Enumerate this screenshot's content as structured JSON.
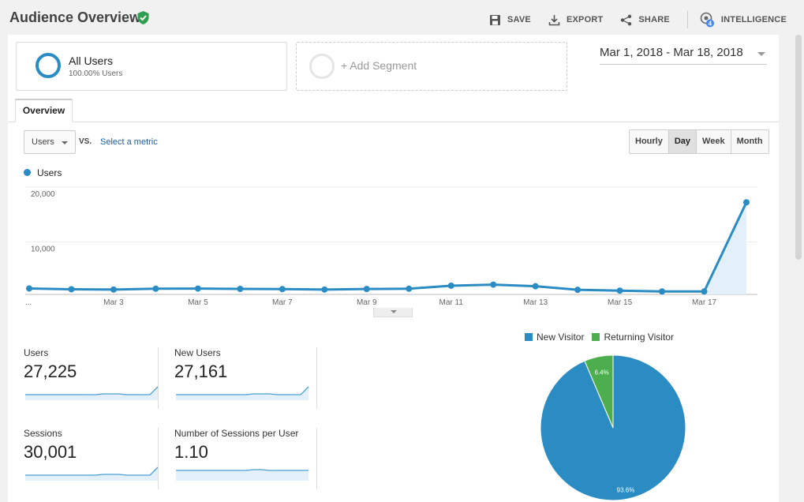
{
  "header": {
    "title": "Audience Overview",
    "actions": {
      "save": "SAVE",
      "export": "EXPORT",
      "share": "SHARE",
      "intelligence": "INTELLIGENCE",
      "intelligence_badge": "4"
    }
  },
  "segments": {
    "active": {
      "name": "All Users",
      "sub": "100.00% Users"
    },
    "add_label": "+ Add Segment"
  },
  "date_range": "Mar 1, 2018 - Mar 18, 2018",
  "tabs": {
    "overview": "Overview"
  },
  "controls": {
    "metric": "Users",
    "vs": "VS.",
    "select_metric": "Select a metric",
    "granularity": [
      "Hourly",
      "Day",
      "Week",
      "Month"
    ],
    "granularity_active": "Day"
  },
  "colors": {
    "primary": "#2b8cc4",
    "secondary": "#4cae4c",
    "verified": "#2e9e4f"
  },
  "chart_data": [
    {
      "type": "line",
      "series": [
        {
          "name": "Users",
          "values": [
            800,
            650,
            600,
            750,
            780,
            720,
            680,
            600,
            700,
            750,
            1300,
            1500,
            1200,
            550,
            400,
            250,
            250,
            16500
          ]
        }
      ],
      "x": [
        "Mar 1",
        "Mar 2",
        "Mar 3",
        "Mar 4",
        "Mar 5",
        "Mar 6",
        "Mar 7",
        "Mar 8",
        "Mar 9",
        "Mar 10",
        "Mar 11",
        "Mar 12",
        "Mar 13",
        "Mar 14",
        "Mar 15",
        "Mar 16",
        "Mar 17",
        "Mar 18"
      ],
      "x_tick_labels": [
        "...",
        "Mar 3",
        "Mar 5",
        "Mar 7",
        "Mar 9",
        "Mar 11",
        "Mar 13",
        "Mar 15",
        "Mar 17"
      ],
      "y_tick_labels": [
        "20,000",
        "10,000"
      ],
      "ylim": [
        0,
        20000
      ],
      "grid": true
    },
    {
      "type": "pie",
      "categories": [
        "New Visitor",
        "Returning Visitor"
      ],
      "values": [
        93.6,
        6.4
      ],
      "labels": [
        "93.6%",
        "6.4%"
      ]
    }
  ],
  "stats": [
    {
      "label": "Users",
      "value": "27,225",
      "spark": [
        6,
        6,
        6,
        6,
        6,
        6,
        6,
        6,
        6,
        6,
        7,
        7,
        7,
        6,
        6,
        6,
        6,
        16
      ]
    },
    {
      "label": "New Users",
      "value": "27,161",
      "spark": [
        6,
        6,
        6,
        6,
        6,
        6,
        6,
        6,
        6,
        6,
        7,
        7,
        7,
        6,
        6,
        6,
        6,
        16
      ]
    },
    {
      "label": "Sessions",
      "value": "30,001",
      "spark": [
        6,
        6,
        6,
        6,
        6,
        6,
        6,
        6,
        6,
        6,
        7,
        7,
        7,
        6,
        6,
        6,
        6,
        16
      ]
    },
    {
      "label": "Number of Sessions per User",
      "value": "1.10",
      "spark": [
        12,
        12,
        12,
        12,
        12,
        12,
        12,
        12,
        12,
        12,
        13,
        13,
        12,
        12,
        12,
        12,
        12,
        12
      ]
    }
  ]
}
